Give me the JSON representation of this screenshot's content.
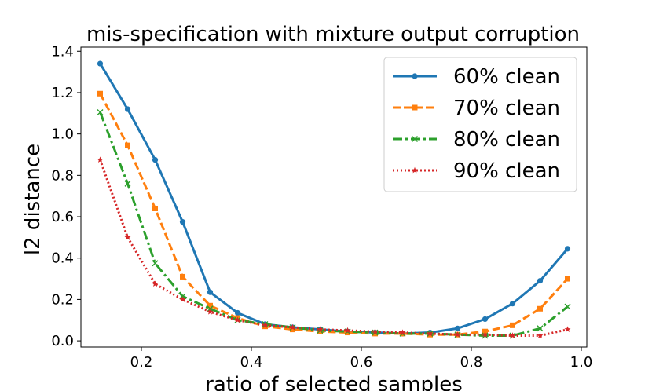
{
  "chart_data": {
    "type": "line",
    "title": "mis-specification with mixture output corruption",
    "xlabel": "ratio of selected samples",
    "ylabel": "l2 distance",
    "xlim": [
      0.09,
      1.01
    ],
    "ylim": [
      -0.03,
      1.42
    ],
    "xticks": [
      0.2,
      0.4,
      0.6,
      0.8,
      1.0
    ],
    "yticks": [
      0.0,
      0.2,
      0.4,
      0.6,
      0.8,
      1.0,
      1.2,
      1.4
    ],
    "xtick_labels": [
      "0.2",
      "0.4",
      "0.6",
      "0.8",
      "1.0"
    ],
    "ytick_labels": [
      "0.0",
      "0.2",
      "0.4",
      "0.6",
      "0.8",
      "1.0",
      "1.2",
      "1.4"
    ],
    "grid": false,
    "legend_position": "top-right",
    "x": [
      0.125,
      0.175,
      0.225,
      0.275,
      0.325,
      0.375,
      0.425,
      0.475,
      0.525,
      0.575,
      0.625,
      0.675,
      0.725,
      0.775,
      0.825,
      0.875,
      0.925,
      0.975
    ],
    "series": [
      {
        "name": "60% clean",
        "color": "#1f77b4",
        "linestyle": "solid",
        "marker": "circle",
        "values": [
          1.34,
          1.12,
          0.875,
          0.575,
          0.235,
          0.135,
          0.08,
          0.065,
          0.055,
          0.045,
          0.04,
          0.035,
          0.04,
          0.06,
          0.105,
          0.18,
          0.29,
          0.445
        ]
      },
      {
        "name": "70% clean",
        "color": "#ff7f0e",
        "linestyle": "dashed",
        "marker": "square",
        "values": [
          1.195,
          0.945,
          0.64,
          0.31,
          0.17,
          0.11,
          0.07,
          0.055,
          0.045,
          0.04,
          0.035,
          0.035,
          0.03,
          0.03,
          0.045,
          0.075,
          0.155,
          0.3
        ]
      },
      {
        "name": "80% clean",
        "color": "#2ca02c",
        "linestyle": "dashdot",
        "marker": "x",
        "values": [
          1.105,
          0.76,
          0.375,
          0.215,
          0.155,
          0.1,
          0.08,
          0.065,
          0.05,
          0.045,
          0.04,
          0.035,
          0.035,
          0.03,
          0.025,
          0.025,
          0.06,
          0.165
        ]
      },
      {
        "name": "90% clean",
        "color": "#d62728",
        "linestyle": "dotted",
        "marker": "star",
        "values": [
          0.875,
          0.5,
          0.275,
          0.2,
          0.14,
          0.1,
          0.075,
          0.065,
          0.055,
          0.05,
          0.045,
          0.04,
          0.035,
          0.03,
          0.03,
          0.025,
          0.025,
          0.055
        ]
      }
    ]
  }
}
